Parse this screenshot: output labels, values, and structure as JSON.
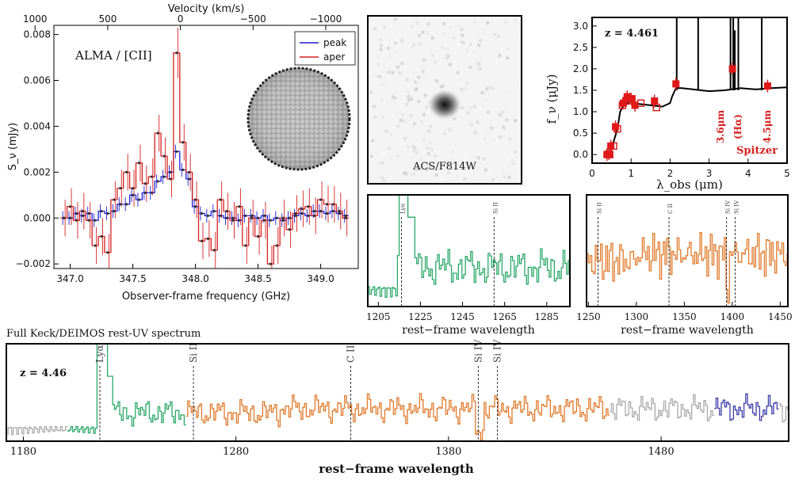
{
  "chart_data": [
    {
      "id": "alma",
      "type": "line",
      "title": "ALMA / [CII]",
      "xlabel": "Observer-frame frequency (GHz)",
      "ylabel": "S_ν (mJy)",
      "top_xlabel": "Velocity (km/s)",
      "xlim": [
        346.87,
        349.3
      ],
      "ylim": [
        -0.0022,
        0.0084
      ],
      "xticks": [
        "347.0",
        "347.5",
        "348.0",
        "348.5",
        "349.0"
      ],
      "yticks": [
        "−0.002",
        "0.000",
        "0.002",
        "0.004",
        "0.006",
        "0.008"
      ],
      "top_ticks": [
        "−1000",
        "−500",
        "0",
        "500",
        "1000"
      ],
      "legend": [
        {
          "label": "peak",
          "color": "#1f1fd6"
        },
        {
          "label": "aper",
          "color": "#d62020"
        }
      ],
      "x": [
        346.95,
        347.0,
        347.05,
        347.1,
        347.15,
        347.2,
        347.25,
        347.3,
        347.35,
        347.4,
        347.45,
        347.5,
        347.55,
        347.6,
        347.65,
        347.7,
        347.75,
        347.8,
        347.85,
        347.9,
        347.95,
        348.0,
        348.05,
        348.1,
        348.15,
        348.2,
        348.25,
        348.3,
        348.35,
        348.4,
        348.45,
        348.5,
        348.55,
        348.6,
        348.65,
        348.7,
        348.75,
        348.8,
        348.85,
        348.9,
        348.95,
        349.0,
        349.05,
        349.1,
        349.15,
        349.2
      ],
      "series": [
        {
          "name": "peak",
          "color": "#1f1fd6",
          "values": [
            0.0,
            0.0,
            0.0002,
            0.0001,
            0.0002,
            -0.0001,
            0.0003,
            0.0002,
            0.0003,
            0.0006,
            0.0006,
            0.001,
            0.0008,
            0.0011,
            0.0011,
            0.0016,
            0.0018,
            0.002,
            0.0029,
            0.0021,
            0.0017,
            0.0005,
            0.0002,
            0.0001,
            0.0003,
            0.0001,
            0.0,
            0.0,
            -0.0001,
            0.0001,
            0.0001,
            0.0,
            0.0001,
            -0.0001,
            0.0,
            -0.0001,
            0.0,
            0.0001,
            0.0002,
            0.0001,
            0.0003,
            0.0003,
            0.0002,
            0.0003,
            0.0002,
            0.0001
          ],
          "error": [
            0.0003,
            0.0003,
            0.0003,
            0.0003,
            0.0003,
            0.0003,
            0.0003,
            0.0003,
            0.0003,
            0.0003,
            0.0003,
            0.0003,
            0.0003,
            0.0003,
            0.0003,
            0.0003,
            0.0003,
            0.0003,
            0.0003,
            0.0003,
            0.0003,
            0.0003,
            0.0003,
            0.0003,
            0.0003,
            0.0003,
            0.0003,
            0.0003,
            0.0003,
            0.0003,
            0.0003,
            0.0003,
            0.0003,
            0.0003,
            0.0003,
            0.0003,
            0.0003,
            0.0003,
            0.0003,
            0.0003,
            0.0003,
            0.0003,
            0.0003,
            0.0003,
            0.0003,
            0.0003
          ]
        },
        {
          "name": "aper",
          "color": "#d62020",
          "values": [
            0.0,
            0.0005,
            -0.0001,
            0.0003,
            -0.0001,
            -0.0012,
            -0.0008,
            -0.0015,
            0.0008,
            0.0013,
            0.002,
            0.0013,
            0.0024,
            0.0015,
            0.0018,
            0.0037,
            0.0027,
            0.0017,
            0.0072,
            0.0033,
            0.002,
            0.0008,
            -0.001,
            -0.0009,
            -0.0014,
            0.0008,
            0.0003,
            -0.0001,
            0.0005,
            -0.0012,
            0.0,
            -0.0008,
            -0.0001,
            -0.002,
            -0.0012,
            0.0,
            -0.0005,
            0.0002,
            0.0004,
            0.0005,
            0.0001,
            0.0008,
            0.0006,
            0.0006,
            0.0003,
            0.0
          ],
          "error": [
            0.0008,
            0.0008,
            0.0008,
            0.0008,
            0.0008,
            0.0008,
            0.0008,
            0.0008,
            0.0008,
            0.0008,
            0.0008,
            0.0008,
            0.0008,
            0.0008,
            0.0008,
            0.0008,
            0.0008,
            0.0008,
            0.0011,
            0.0008,
            0.0008,
            0.0008,
            0.0008,
            0.0008,
            0.0008,
            0.0008,
            0.0008,
            0.0008,
            0.0008,
            0.0008,
            0.0008,
            0.0008,
            0.0008,
            0.0008,
            0.0008,
            0.0008,
            0.0008,
            0.0008,
            0.0008,
            0.0008,
            0.0008,
            0.0008,
            0.0008,
            0.0008,
            0.0008,
            0.0008
          ]
        }
      ],
      "grid": false,
      "legend_position": "top-right"
    },
    {
      "id": "acs",
      "type": "image",
      "title": "ACS/F814W"
    },
    {
      "id": "sed",
      "type": "scatter",
      "annotation": "z = 4.461",
      "xlabel": "λ_obs (μm)",
      "ylabel": "f_ν (μJy)",
      "xlim": [
        0,
        5
      ],
      "ylim": [
        -0.2,
        3.2
      ],
      "xticks": [
        "0",
        "1",
        "2",
        "3",
        "4",
        "5"
      ],
      "yticks": [
        "0.0",
        "0.5",
        "1.0",
        "1.5",
        "2.0",
        "2.5",
        "3.0"
      ],
      "filled_points": {
        "x": [
          0.38,
          0.43,
          0.48,
          0.6,
          0.8,
          0.9,
          1.0,
          1.1,
          1.6,
          2.15,
          3.6,
          4.5
        ],
        "y": [
          0.0,
          0.02,
          0.2,
          0.65,
          1.2,
          1.35,
          1.3,
          1.15,
          1.25,
          1.65,
          2.0,
          1.6
        ]
      },
      "open_points": {
        "x": [
          0.45,
          0.55,
          0.65,
          0.78,
          0.87,
          1.02,
          1.25,
          1.65
        ],
        "y": [
          0.0,
          0.2,
          0.6,
          1.15,
          1.25,
          1.3,
          1.2,
          1.1
        ]
      },
      "labels": [
        "3.6μm",
        "(Hα)",
        "4.5μm",
        "Spitzer"
      ],
      "grid": false
    },
    {
      "id": "zoom_lya",
      "type": "line",
      "xlabel": "rest−frame wavelength",
      "xlim": [
        1200,
        1296
      ],
      "xticks": [
        "1205",
        "1225",
        "1245",
        "1265",
        "1285"
      ],
      "lines": [
        {
          "x": 1216,
          "label": "Lyα"
        },
        {
          "x": 1260,
          "label": "Si II"
        }
      ],
      "color": "#2aa86a"
    },
    {
      "id": "zoom_metals",
      "type": "line",
      "xlabel": "rest−frame wavelength",
      "xlim": [
        1248,
        1458
      ],
      "xticks": [
        "1250",
        "1300",
        "1350",
        "1400",
        "1450"
      ],
      "lines": [
        {
          "x": 1260,
          "label": "Si II"
        },
        {
          "x": 1334,
          "label": "C II"
        },
        {
          "x": 1394,
          "label": "Si IV"
        },
        {
          "x": 1403,
          "label": "Si IV"
        }
      ],
      "color": "#e07a2a"
    },
    {
      "id": "full",
      "type": "line",
      "title": "Full Keck/DEIMOS rest-UV spectrum",
      "annotation": "z = 4.46",
      "xlabel": "rest−frame wavelength",
      "xlim": [
        1172,
        1540
      ],
      "xticks": [
        "1180",
        "1280",
        "1380",
        "1480"
      ],
      "lines": [
        {
          "x": 1216,
          "label": "Lyα"
        },
        {
          "x": 1260,
          "label": "Si II"
        },
        {
          "x": 1334,
          "label": "C II"
        },
        {
          "x": 1394,
          "label": "Si IV"
        },
        {
          "x": 1403,
          "label": "Si IV"
        }
      ],
      "segments": [
        {
          "from": 1172,
          "to": 1200,
          "color": "#aaaaaa"
        },
        {
          "from": 1200,
          "to": 1256,
          "color": "#2aa86a"
        },
        {
          "from": 1256,
          "to": 1455,
          "color": "#e07a2a"
        },
        {
          "from": 1455,
          "to": 1505,
          "color": "#aaaaaa"
        },
        {
          "from": 1505,
          "to": 1535,
          "color": "#3d3da8"
        }
      ]
    }
  ]
}
